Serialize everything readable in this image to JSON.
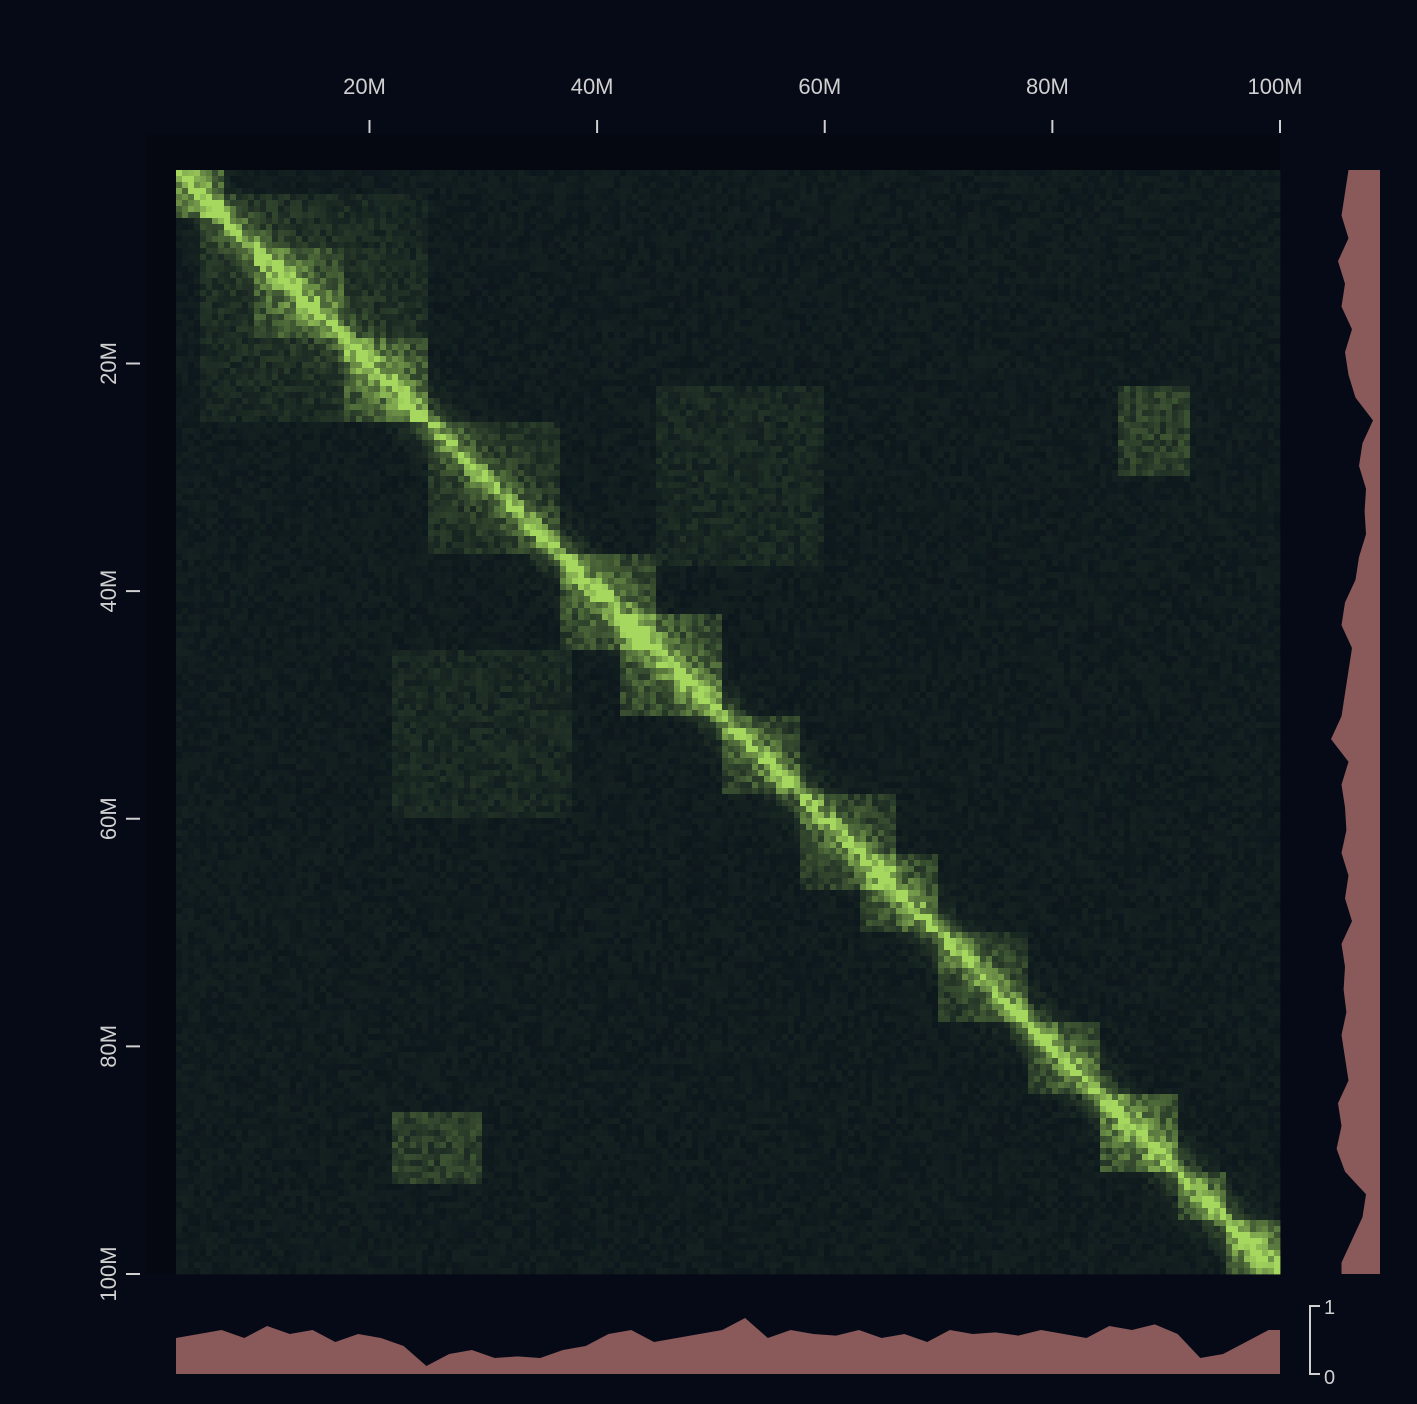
{
  "chart_data": {
    "type": "heatmap",
    "title": "",
    "xlabel": "",
    "ylabel": "",
    "x_axis_position": "top",
    "y_axis_position": "left",
    "xlim": [
      3000000,
      100000000
    ],
    "ylim": [
      3000000,
      100000000
    ],
    "x_ticks": [
      {
        "value": 20000000,
        "label": "20M"
      },
      {
        "value": 40000000,
        "label": "40M"
      },
      {
        "value": 60000000,
        "label": "60M"
      },
      {
        "value": 80000000,
        "label": "80M"
      },
      {
        "value": 100000000,
        "label": "100M"
      }
    ],
    "y_ticks": [
      {
        "value": 20000000,
        "label": "20M"
      },
      {
        "value": 40000000,
        "label": "40M"
      },
      {
        "value": 60000000,
        "label": "60M"
      },
      {
        "value": 80000000,
        "label": "80M"
      },
      {
        "value": 100000000,
        "label": "100M"
      }
    ],
    "colors": {
      "background": "#060916",
      "matrix_background": "#050810",
      "heat_low": "#07101a",
      "heat_high": "#a6d860",
      "track_fill": "#8a5a5a",
      "axis_text": "#d0d0d0"
    },
    "domains": [
      {
        "start": 3000000,
        "end": 7000000,
        "strength": 0.85
      },
      {
        "start": 5000000,
        "end": 25000000,
        "strength": 0.35
      },
      {
        "start": 10000000,
        "end": 18000000,
        "strength": 0.5
      },
      {
        "start": 18000000,
        "end": 25000000,
        "strength": 0.55
      },
      {
        "start": 25000000,
        "end": 37000000,
        "strength": 0.4
      },
      {
        "start": 37000000,
        "end": 45000000,
        "strength": 0.7
      },
      {
        "start": 42000000,
        "end": 51000000,
        "strength": 0.75
      },
      {
        "start": 51000000,
        "end": 58000000,
        "strength": 0.55
      },
      {
        "start": 58000000,
        "end": 66000000,
        "strength": 0.55
      },
      {
        "start": 63000000,
        "end": 70000000,
        "strength": 0.65
      },
      {
        "start": 70000000,
        "end": 78000000,
        "strength": 0.5
      },
      {
        "start": 78000000,
        "end": 84000000,
        "strength": 0.6
      },
      {
        "start": 84000000,
        "end": 91000000,
        "strength": 0.85
      },
      {
        "start": 91000000,
        "end": 95000000,
        "strength": 0.55
      },
      {
        "start": 95000000,
        "end": 100000000,
        "strength": 0.85
      }
    ],
    "interactions": [
      {
        "x_start": 86000000,
        "x_end": 92000000,
        "y_start": 22000000,
        "y_end": 30000000,
        "strength": 0.35
      },
      {
        "x_start": 22000000,
        "x_end": 30000000,
        "y_start": 86000000,
        "y_end": 92000000,
        "strength": 0.35
      },
      {
        "x_start": 45000000,
        "x_end": 60000000,
        "y_start": 22000000,
        "y_end": 38000000,
        "strength": 0.12
      },
      {
        "x_start": 22000000,
        "x_end": 38000000,
        "y_start": 45000000,
        "y_end": 60000000,
        "strength": 0.12
      }
    ],
    "coverage_track": {
      "ymin": 0,
      "ymax": 1,
      "tick_labels": [
        "1",
        "0"
      ],
      "positions": [
        3,
        5,
        7,
        9,
        11,
        13,
        15,
        17,
        19,
        21,
        23,
        25,
        27,
        29,
        31,
        33,
        35,
        37,
        39,
        41,
        43,
        45,
        47,
        49,
        51,
        53,
        55,
        57,
        59,
        61,
        63,
        65,
        67,
        69,
        71,
        73,
        75,
        77,
        79,
        81,
        83,
        85,
        87,
        89,
        91,
        93,
        95,
        97,
        99
      ],
      "values": [
        0.45,
        0.5,
        0.55,
        0.45,
        0.6,
        0.5,
        0.55,
        0.4,
        0.5,
        0.45,
        0.35,
        0.1,
        0.25,
        0.3,
        0.2,
        0.22,
        0.2,
        0.3,
        0.35,
        0.5,
        0.55,
        0.4,
        0.45,
        0.5,
        0.55,
        0.7,
        0.45,
        0.55,
        0.5,
        0.48,
        0.55,
        0.45,
        0.5,
        0.4,
        0.55,
        0.5,
        0.52,
        0.48,
        0.55,
        0.5,
        0.45,
        0.6,
        0.55,
        0.62,
        0.5,
        0.2,
        0.25,
        0.4,
        0.55
      ]
    }
  }
}
